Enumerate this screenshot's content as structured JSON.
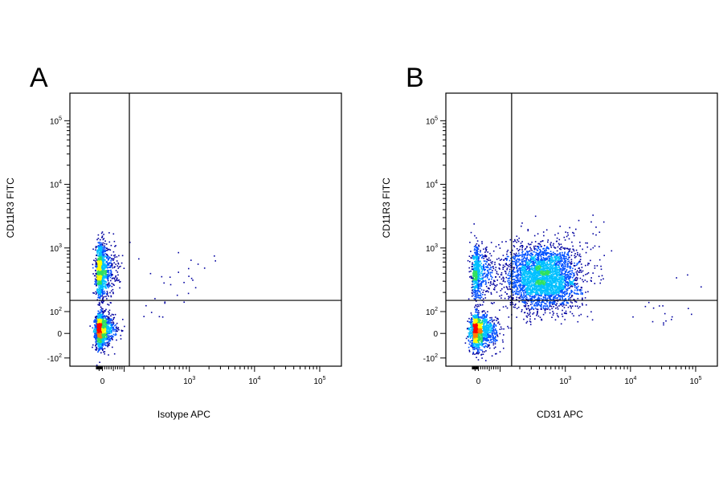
{
  "figure": {
    "panels": [
      {
        "letter": "A"
      },
      {
        "letter": "B"
      }
    ]
  },
  "chart_data": [
    {
      "type": "scatter",
      "title": "",
      "panel_label": "A",
      "xlabel": "Isotype APC",
      "ylabel": "CD11R3 FITC",
      "x_scale": "biexponential",
      "y_scale": "biexponential",
      "x_ticks": [
        "0",
        "10^3",
        "10^4",
        "10^5"
      ],
      "y_ticks": [
        "10^5",
        "10^4",
        "10^3",
        "10^2",
        "0",
        "-10^2"
      ],
      "quadrant_gate": {
        "x": 120,
        "y": 150
      },
      "populations": [
        {
          "name": "CD11R3-low",
          "center": [
            -30,
            20
          ],
          "spread": [
            40,
            35
          ],
          "events": 1700
        },
        {
          "name": "CD11R3-high",
          "center": [
            -25,
            450
          ],
          "spread": [
            40,
            1.6
          ],
          "events": 1300
        }
      ],
      "scattered_events": [
        [
          400,
          500
        ],
        [
          600,
          300
        ],
        [
          900,
          200
        ],
        [
          250,
          80
        ],
        [
          1500,
          700
        ]
      ],
      "density_colors": [
        "#0000a0",
        "#0050ff",
        "#00c0ff",
        "#30e060",
        "#ffff00",
        "#ff8000",
        "#ff0000"
      ]
    },
    {
      "type": "scatter",
      "title": "",
      "panel_label": "B",
      "xlabel": "CD31 APC",
      "ylabel": "CD11R3 FITC",
      "x_scale": "biexponential",
      "y_scale": "biexponential",
      "x_ticks": [
        "0",
        "10^3",
        "10^4",
        "10^5"
      ],
      "y_ticks": [
        "10^5",
        "10^4",
        "10^3",
        "10^2",
        "0",
        "-10^2"
      ],
      "quadrant_gate": {
        "x": 150,
        "y": 150
      },
      "populations": [
        {
          "name": "CD31-neg CD11R3-low",
          "center": [
            -20,
            15
          ],
          "spread": [
            50,
            35
          ],
          "events": 1600
        },
        {
          "name": "CD31-pos CD11R3-pos",
          "center": [
            450,
            350
          ],
          "spread": [
            1.9,
            1.8
          ],
          "events": 3200
        },
        {
          "name": "CD31-neg CD11R3-high",
          "center": [
            -20,
            400
          ],
          "spread": [
            45,
            1.6
          ],
          "events": 700
        }
      ],
      "scattered_events": [
        [
          2500,
          1500
        ],
        [
          3000,
          900
        ],
        [
          60000,
          200
        ],
        [
          40000,
          60
        ],
        [
          20000,
          100
        ],
        [
          2000,
          3000
        ]
      ],
      "density_colors": [
        "#0000a0",
        "#0050ff",
        "#00c0ff",
        "#30e060",
        "#ffff00",
        "#ff8000",
        "#ff0000"
      ]
    }
  ]
}
